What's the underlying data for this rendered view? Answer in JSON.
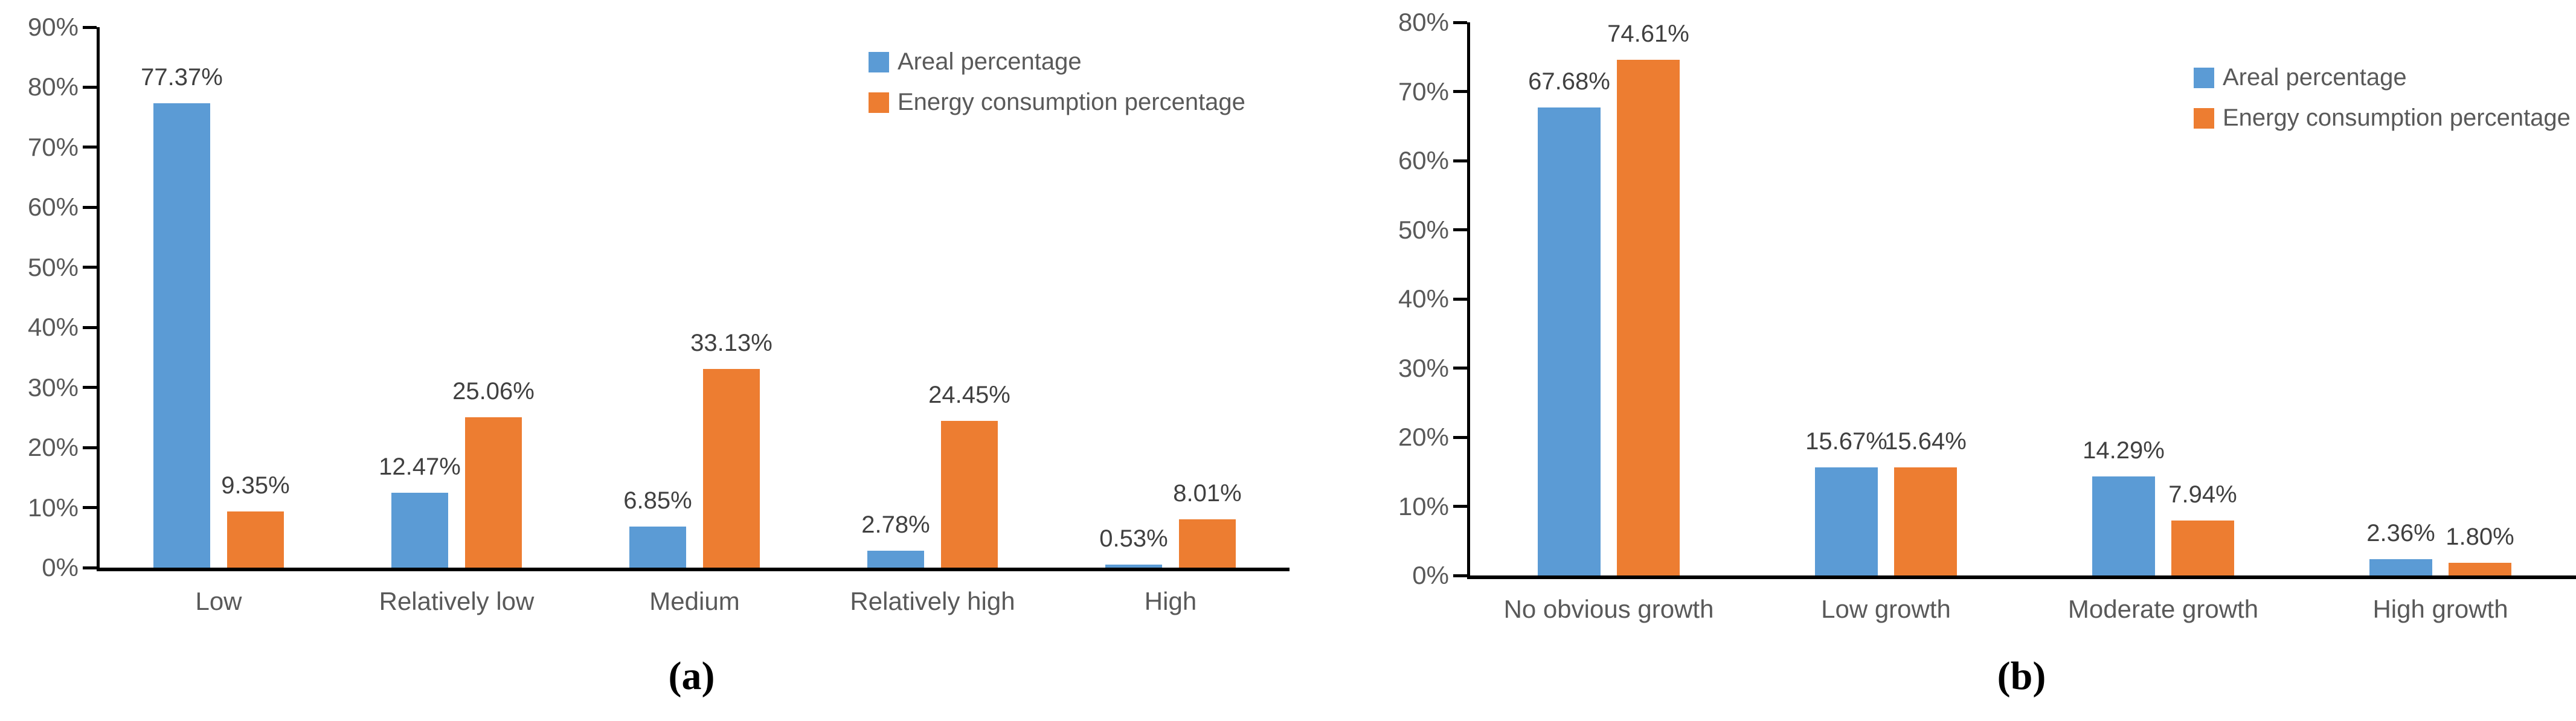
{
  "figure": {
    "background": "#ffffff",
    "axis_color": "#000000",
    "tick_label_color": "#595959",
    "data_label_color": "#404040"
  },
  "legend": {
    "items": [
      {
        "label": "Areal percentage",
        "color": "#5B9BD5",
        "swatch": "blue-square-swatch"
      },
      {
        "label": "Energy consumption percentage",
        "color": "#ED7D31",
        "swatch": "orange-square-swatch"
      }
    ]
  },
  "chart_data": [
    {
      "id": "a",
      "type": "bar",
      "caption": "(a)",
      "title": "",
      "xlabel": "",
      "ylabel": "",
      "categories": [
        "Low",
        "Relatively low",
        "Medium",
        "Relatively high",
        "High"
      ],
      "series": [
        {
          "name": "Areal percentage",
          "color": "#5B9BD5",
          "values": [
            77.37,
            12.47,
            6.85,
            2.78,
            0.53
          ],
          "labels": [
            "77.37%",
            "12.47%",
            "6.85%",
            "2.78%",
            "0.53%"
          ]
        },
        {
          "name": "Energy consumption percentage",
          "color": "#ED7D31",
          "values": [
            9.35,
            25.06,
            33.13,
            24.45,
            8.01
          ],
          "labels": [
            "9.35%",
            "25.06%",
            "33.13%",
            "24.45%",
            "8.01%"
          ]
        }
      ],
      "ylim": [
        0,
        90
      ],
      "ytick_step": 10,
      "yticks": [
        "0%",
        "10%",
        "20%",
        "30%",
        "40%",
        "50%",
        "60%",
        "70%",
        "80%",
        "90%"
      ],
      "grid": false,
      "legend_position": "top-right"
    },
    {
      "id": "b",
      "type": "bar",
      "caption": "(b)",
      "title": "",
      "xlabel": "",
      "ylabel": "",
      "categories": [
        "No obvious growth",
        "Low growth",
        "Moderate growth",
        "High growth"
      ],
      "series": [
        {
          "name": "Areal percentage",
          "color": "#5B9BD5",
          "values": [
            67.68,
            15.67,
            14.29,
            2.36
          ],
          "labels": [
            "67.68%",
            "15.67%",
            "14.29%",
            "2.36%"
          ]
        },
        {
          "name": "Energy consumption percentage",
          "color": "#ED7D31",
          "values": [
            74.61,
            15.64,
            7.94,
            1.8
          ],
          "labels": [
            "74.61%",
            "15.64%",
            "7.94%",
            "1.80%"
          ]
        }
      ],
      "ylim": [
        0,
        80
      ],
      "ytick_step": 10,
      "yticks": [
        "0%",
        "10%",
        "20%",
        "30%",
        "40%",
        "50%",
        "60%",
        "70%",
        "80%"
      ],
      "grid": false,
      "legend_position": "top-right"
    }
  ]
}
